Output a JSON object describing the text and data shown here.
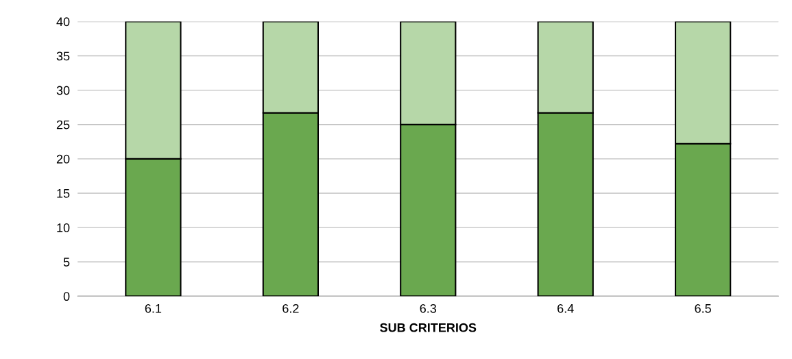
{
  "chart_data": {
    "type": "bar",
    "stacked": true,
    "xlabel": "SUB CRITERIOS",
    "categories": [
      "6.1",
      "6.2",
      "6.3",
      "6.4",
      "6.5"
    ],
    "series": [
      {
        "color": "#6aa84f",
        "values": [
          20,
          26.7,
          25,
          26.7,
          22.2
        ]
      },
      {
        "color": "#b6d7a8",
        "values": [
          20,
          13.3,
          15,
          13.3,
          17.8
        ]
      }
    ],
    "ylim": [
      0,
      40
    ],
    "yticks": [
      0,
      5,
      10,
      15,
      20,
      25,
      30,
      35,
      40
    ],
    "grid": "y",
    "legend": false
  }
}
